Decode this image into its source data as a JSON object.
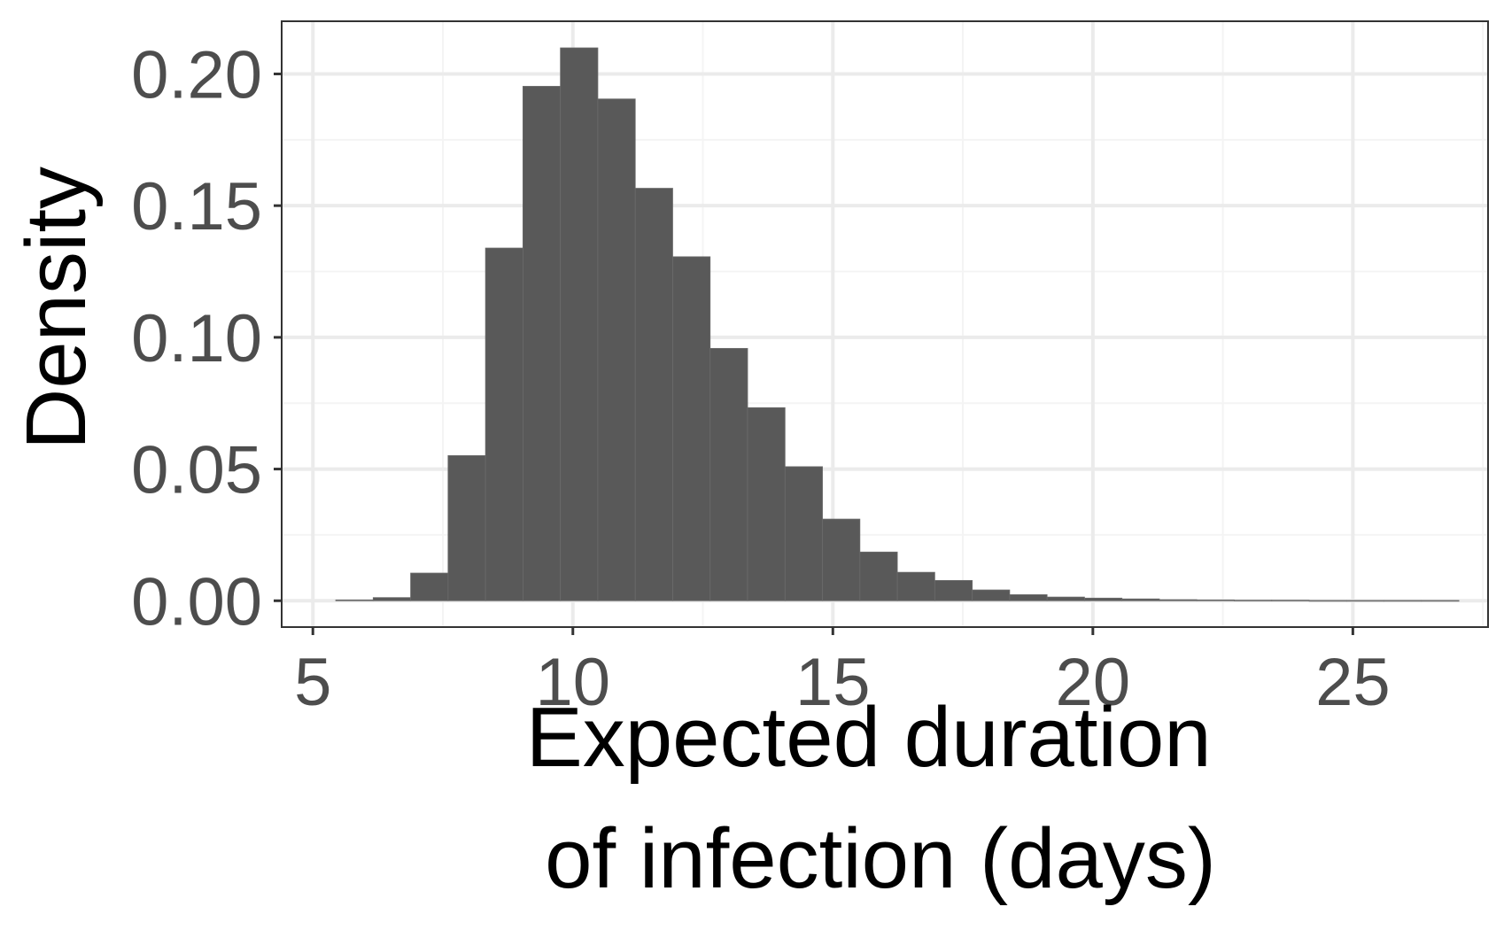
{
  "chart_data": {
    "type": "bar",
    "subtype": "histogram",
    "xlabel_lines": [
      "Expected duration",
      "of infection (days)"
    ],
    "ylabel": "Density",
    "xlim": [
      4.4,
      27.6
    ],
    "ylim": [
      -0.01,
      0.22
    ],
    "x_ticks": [
      5,
      10,
      15,
      20,
      25
    ],
    "x_tick_labels": [
      "5",
      "10",
      "15",
      "20",
      "25"
    ],
    "y_ticks": [
      0.0,
      0.05,
      0.1,
      0.15,
      0.2
    ],
    "y_tick_labels": [
      "0.00",
      "0.05",
      "0.10",
      "0.15",
      "0.20"
    ],
    "x_minor_ticks": [
      7.5,
      12.5,
      17.5,
      22.5,
      27.5
    ],
    "y_minor_ticks": [
      0.025,
      0.075,
      0.125,
      0.175
    ],
    "bin_width": 0.72,
    "bins": [
      {
        "x0": 5.44,
        "x1": 6.16,
        "density": 0.0003
      },
      {
        "x0": 6.16,
        "x1": 6.88,
        "density": 0.0012
      },
      {
        "x0": 6.88,
        "x1": 7.6,
        "density": 0.0105
      },
      {
        "x0": 7.6,
        "x1": 8.32,
        "density": 0.0551
      },
      {
        "x0": 8.32,
        "x1": 9.04,
        "density": 0.1339
      },
      {
        "x0": 9.04,
        "x1": 9.76,
        "density": 0.1953
      },
      {
        "x0": 9.76,
        "x1": 10.48,
        "density": 0.2099
      },
      {
        "x0": 10.48,
        "x1": 11.2,
        "density": 0.1905
      },
      {
        "x0": 11.2,
        "x1": 11.92,
        "density": 0.1566
      },
      {
        "x0": 11.92,
        "x1": 12.64,
        "density": 0.1306
      },
      {
        "x0": 12.64,
        "x1": 13.36,
        "density": 0.0958
      },
      {
        "x0": 13.36,
        "x1": 14.08,
        "density": 0.0733
      },
      {
        "x0": 14.08,
        "x1": 14.8,
        "density": 0.0509
      },
      {
        "x0": 14.8,
        "x1": 15.52,
        "density": 0.031
      },
      {
        "x0": 15.52,
        "x1": 16.24,
        "density": 0.0185
      },
      {
        "x0": 16.24,
        "x1": 16.96,
        "density": 0.0108
      },
      {
        "x0": 16.96,
        "x1": 17.68,
        "density": 0.0077
      },
      {
        "x0": 17.68,
        "x1": 18.4,
        "density": 0.0041
      },
      {
        "x0": 18.4,
        "x1": 19.12,
        "density": 0.0023
      },
      {
        "x0": 19.12,
        "x1": 19.84,
        "density": 0.0014
      },
      {
        "x0": 19.84,
        "x1": 20.56,
        "density": 0.001
      },
      {
        "x0": 20.56,
        "x1": 21.28,
        "density": 0.0007
      },
      {
        "x0": 21.28,
        "x1": 22.0,
        "density": 0.0004
      },
      {
        "x0": 22.0,
        "x1": 22.72,
        "density": 0.0003
      },
      {
        "x0": 22.72,
        "x1": 23.44,
        "density": 0.0002
      },
      {
        "x0": 23.44,
        "x1": 24.16,
        "density": 0.0002
      },
      {
        "x0": 24.16,
        "x1": 24.88,
        "density": 0.0001
      },
      {
        "x0": 24.88,
        "x1": 25.6,
        "density": 0.0001
      },
      {
        "x0": 25.6,
        "x1": 26.32,
        "density": 0.0001
      },
      {
        "x0": 26.32,
        "x1": 27.04,
        "density": 0.0001
      }
    ],
    "grid": true,
    "legend": "none",
    "colors": {
      "bar_fill": "#595959",
      "bar_edge": "#6b6b6b",
      "panel_border": "#333333",
      "grid_major": "#ebebeb",
      "grid_minor": "#f4f4f4",
      "tick_label": "#4d4d4d",
      "axis_title": "#000000"
    }
  }
}
